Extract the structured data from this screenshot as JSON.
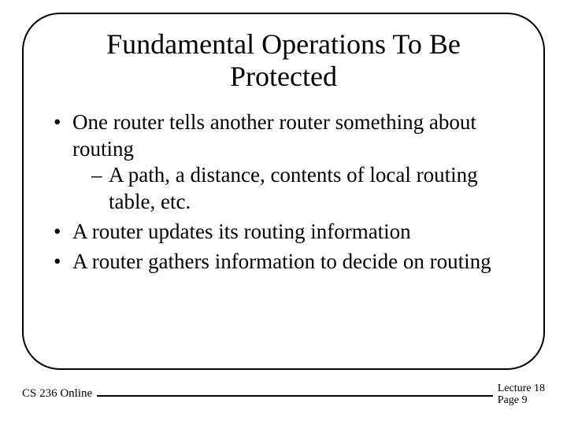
{
  "title": "Fundamental Operations To Be Protected",
  "bullets": [
    {
      "text": "One router tells another router something about routing",
      "sub": [
        "A path, a distance, contents of local routing table, etc."
      ]
    },
    {
      "text": "A router updates its routing information",
      "sub": []
    },
    {
      "text": "A router gathers information to decide on routing",
      "sub": []
    }
  ],
  "footer": {
    "left": "CS 236 Online",
    "lecture": "Lecture 18",
    "page": "Page 9"
  }
}
